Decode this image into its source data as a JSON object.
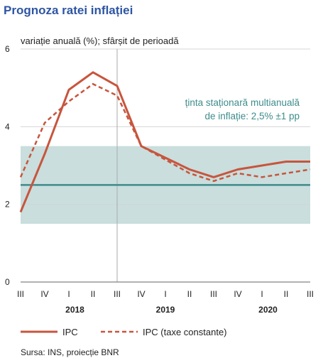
{
  "chart_data": {
    "type": "line",
    "title": "Prognoza ratei inflației",
    "subtitle": "variație anuală (%); sfârșit de perioadă",
    "ylim": [
      0,
      6
    ],
    "yticks": [
      "0",
      "2",
      "4",
      "6"
    ],
    "categories": [
      "III",
      "IV",
      "I",
      "II",
      "III",
      "IV",
      "I",
      "II",
      "III",
      "IV",
      "I",
      "II",
      "III"
    ],
    "years": [
      {
        "label": "2018"
      },
      {
        "label": "2019"
      },
      {
        "label": "2020"
      }
    ],
    "target": {
      "center": 2.5,
      "lower": 1.5,
      "upper": 3.5,
      "label_line1": "ținta staționară multianuală",
      "label_line2": "de inflație: 2,5% ±1 pp"
    },
    "series": [
      {
        "name": "IPC",
        "style": "solid",
        "color": "#c8553d",
        "values": [
          1.8,
          3.3,
          4.95,
          5.4,
          5.05,
          3.5,
          3.2,
          2.9,
          2.7,
          2.9,
          3.0,
          3.1,
          3.1
        ]
      },
      {
        "name": "IPC (taxe constante)",
        "style": "dashed",
        "color": "#c8553d",
        "values": [
          2.7,
          4.1,
          4.65,
          5.1,
          4.8,
          3.5,
          3.15,
          2.8,
          2.6,
          2.8,
          2.7,
          2.8,
          2.9
        ]
      }
    ],
    "grid": true,
    "legend_position": "bottom"
  },
  "source": "Sursa: INS, proiecție BNR",
  "colors": {
    "title": "#2e55a3",
    "series": "#c8553d",
    "target_line": "#3e8c8c",
    "target_band": "#c9dedd",
    "grid": "#d4d4d4"
  }
}
